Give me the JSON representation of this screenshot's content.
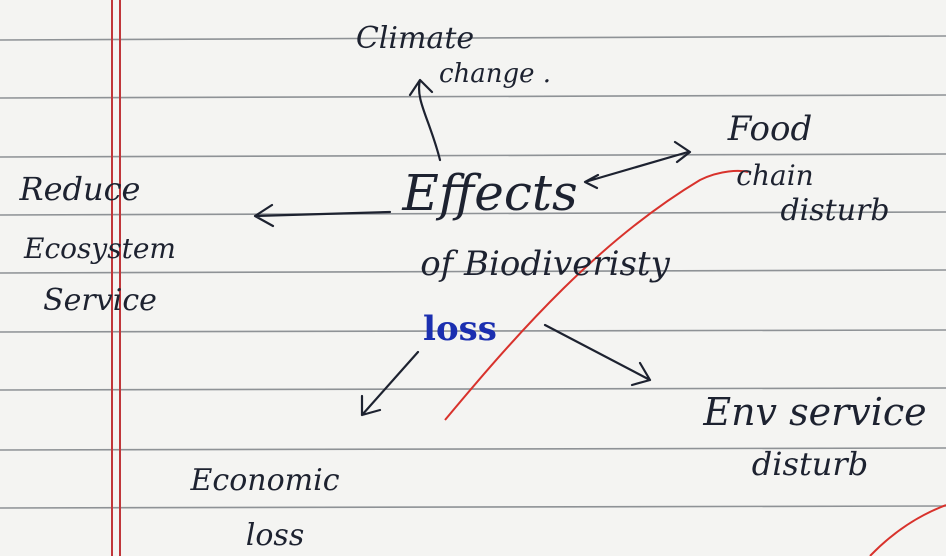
{
  "nodes": [
    {
      "lines": [
        "Effects",
        "of Biodiveristy",
        "loss"
      ]
    },
    {
      "lines": [
        "Climate",
        "change ."
      ]
    },
    {
      "lines": [
        "Food",
        "chain",
        "disturb"
      ]
    },
    {
      "lines": [
        "Reduce",
        "Ecosystem",
        "Service"
      ]
    },
    {
      "lines": [
        "Economic",
        "loss"
      ]
    },
    {
      "lines": [
        "Env service",
        "disturb"
      ]
    }
  ]
}
